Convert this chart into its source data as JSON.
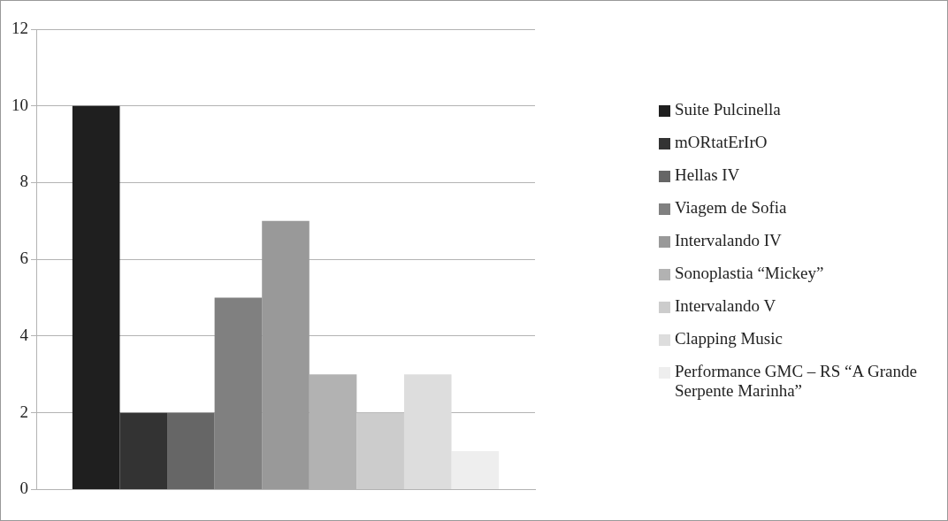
{
  "chart_data": {
    "type": "bar",
    "categories": [
      null
    ],
    "ylim": [
      0,
      12
    ],
    "yticks": [
      0,
      2,
      4,
      6,
      8,
      10,
      12
    ],
    "grid": "y",
    "legend": "right",
    "series": [
      {
        "name": "Suite Pulcinella",
        "color": "#1f1f1f",
        "values": [
          10
        ]
      },
      {
        "name": "mORtatErIrO",
        "color": "#333333",
        "values": [
          2
        ]
      },
      {
        "name": "Hellas IV",
        "color": "#666666",
        "values": [
          2
        ]
      },
      {
        "name": "Viagem de Sofia",
        "color": "#808080",
        "values": [
          5
        ]
      },
      {
        "name": "Intervalando IV",
        "color": "#999999",
        "values": [
          7
        ]
      },
      {
        "name": "Sonoplastia “Mickey”",
        "color": "#b2b2b2",
        "values": [
          3
        ]
      },
      {
        "name": "Intervalando V",
        "color": "#cccccc",
        "values": [
          2
        ]
      },
      {
        "name": "Clapping Music",
        "color": "#dddddd",
        "values": [
          3
        ]
      },
      {
        "name": "Performance GMC – RS “A Grande Serpente Marinha”",
        "color": "#eeeeee",
        "values": [
          1
        ]
      }
    ]
  }
}
